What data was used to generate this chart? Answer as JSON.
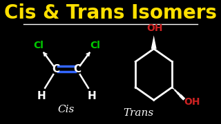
{
  "bg_color": "#000000",
  "title": "Cis & Trans Isomers",
  "title_color": "#FFE000",
  "title_fontsize": 20,
  "separator_color": "#FFFFFF",
  "cis_label": "Cis",
  "trans_label": "Trans",
  "label_color": "#FFFFFF",
  "label_fontsize": 11,
  "cl_color": "#00CC00",
  "oh_color": "#CC2222",
  "bond_color": "#FFFFFF",
  "double_bond_color": "#3366FF",
  "carbon_color": "#FFFFFF",
  "h_color": "#FFFFFF"
}
